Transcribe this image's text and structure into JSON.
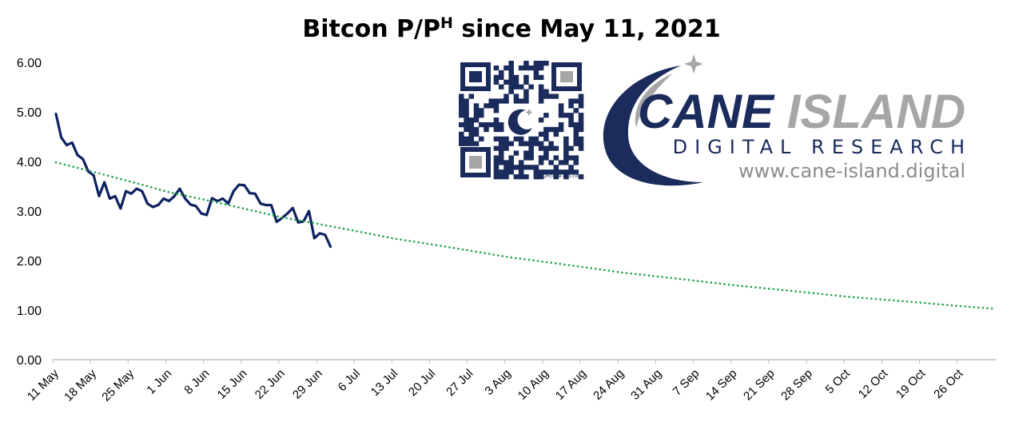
{
  "chart_data": {
    "type": "line",
    "title_main": "Bitcon P/P",
    "title_sup": "H",
    "title_rest": " since May 11, 2021",
    "x_start": "2021-05-11",
    "x_end": "2021-11-01",
    "xticks": [
      "11 May",
      "18 May",
      "25 May",
      "1 Jun",
      "8 Jun",
      "15 Jun",
      "22 Jun",
      "29 Jun",
      "6 Jul",
      "13 Jul",
      "20 Jul",
      "27 Jul",
      "3 Aug",
      "10 Aug",
      "17 Aug",
      "24 Aug",
      "31 Aug",
      "7 Sep",
      "14 Sep",
      "21 Sep",
      "28 Sep",
      "5 Oct",
      "12 Oct",
      "19 Oct",
      "26 Oct"
    ],
    "ylim": [
      0,
      6
    ],
    "yticks": [
      "0.00",
      "1.00",
      "2.00",
      "3.00",
      "4.00",
      "5.00",
      "6.00"
    ],
    "ytick_values": [
      0,
      1,
      2,
      3,
      4,
      5,
      6
    ],
    "grid": false,
    "series": [
      {
        "style": "solid",
        "color": "#0d2260",
        "x": [
          "2021-05-11",
          "2021-05-12",
          "2021-05-13",
          "2021-05-14",
          "2021-05-15",
          "2021-05-16",
          "2021-05-17",
          "2021-05-18",
          "2021-05-19",
          "2021-05-20",
          "2021-05-21",
          "2021-05-22",
          "2021-05-23",
          "2021-05-24",
          "2021-05-25",
          "2021-05-26",
          "2021-05-27",
          "2021-05-28",
          "2021-05-29",
          "2021-05-30",
          "2021-05-31",
          "2021-06-01",
          "2021-06-02",
          "2021-06-03",
          "2021-06-04",
          "2021-06-05",
          "2021-06-06",
          "2021-06-07",
          "2021-06-08",
          "2021-06-09",
          "2021-06-10",
          "2021-06-11",
          "2021-06-12",
          "2021-06-13",
          "2021-06-14",
          "2021-06-15",
          "2021-06-16",
          "2021-06-17",
          "2021-06-18",
          "2021-06-19",
          "2021-06-20",
          "2021-06-21",
          "2021-06-22",
          "2021-06-23",
          "2021-06-24",
          "2021-06-25",
          "2021-06-26",
          "2021-06-27",
          "2021-06-28",
          "2021-06-29",
          "2021-06-30",
          "2021-07-01"
        ],
        "values": [
          4.96,
          4.48,
          4.33,
          4.38,
          4.13,
          4.05,
          3.8,
          3.72,
          3.3,
          3.58,
          3.25,
          3.3,
          3.05,
          3.4,
          3.35,
          3.45,
          3.4,
          3.15,
          3.08,
          3.12,
          3.25,
          3.2,
          3.3,
          3.45,
          3.25,
          3.13,
          3.1,
          2.95,
          2.92,
          3.26,
          3.2,
          3.25,
          3.15,
          3.4,
          3.53,
          3.52,
          3.36,
          3.35,
          3.15,
          3.12,
          3.12,
          2.78,
          2.86,
          2.95,
          3.06,
          2.77,
          2.79,
          3.0,
          2.45,
          2.55,
          2.52,
          2.28
        ]
      },
      {
        "style": "dotted",
        "color": "#1fa14a",
        "x": [
          "2021-05-11",
          "2021-06-01",
          "2021-06-22",
          "2021-07-13",
          "2021-08-03",
          "2021-08-24",
          "2021-09-14",
          "2021-10-05",
          "2021-10-26",
          "2021-11-01"
        ],
        "values": [
          3.98,
          3.38,
          2.87,
          2.44,
          2.07,
          1.76,
          1.5,
          1.27,
          1.08,
          1.03
        ]
      }
    ]
  },
  "logo": {
    "brand_name": "CANE ISLAND",
    "brand_sub": "DIGITAL RESEARCH",
    "brand_url": "www.cane-island.digital",
    "qr_caption": "QRcode-pro.com",
    "navy": "#1a2b5c",
    "grey": "#a6a6a6"
  }
}
